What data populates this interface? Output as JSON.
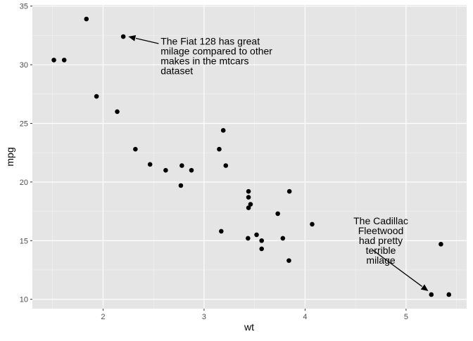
{
  "chart_data": {
    "type": "scatter",
    "xlabel": "wt",
    "ylabel": "mpg",
    "xlim": [
      1.3,
      5.6
    ],
    "ylim": [
      9.2,
      35.1
    ],
    "x_ticks": [
      2,
      3,
      4,
      5
    ],
    "y_ticks": [
      10,
      15,
      20,
      25,
      30,
      35
    ],
    "x_tick_labels": [
      "2",
      "3",
      "4",
      "5"
    ],
    "y_tick_labels": [
      "10",
      "15",
      "20",
      "25",
      "30",
      "35"
    ],
    "grid": true,
    "background": "#e5e5e5",
    "point_color": "#000000",
    "points": [
      {
        "x": 2.62,
        "y": 21.0
      },
      {
        "x": 2.875,
        "y": 21.0
      },
      {
        "x": 2.32,
        "y": 22.8
      },
      {
        "x": 3.215,
        "y": 21.4
      },
      {
        "x": 3.44,
        "y": 18.7
      },
      {
        "x": 3.46,
        "y": 18.1
      },
      {
        "x": 3.57,
        "y": 14.3
      },
      {
        "x": 3.19,
        "y": 24.4
      },
      {
        "x": 3.15,
        "y": 22.8
      },
      {
        "x": 3.44,
        "y": 19.2
      },
      {
        "x": 3.44,
        "y": 17.8
      },
      {
        "x": 4.07,
        "y": 16.4
      },
      {
        "x": 3.73,
        "y": 17.3
      },
      {
        "x": 3.78,
        "y": 15.2
      },
      {
        "x": 5.25,
        "y": 10.4
      },
      {
        "x": 5.424,
        "y": 10.4
      },
      {
        "x": 5.345,
        "y": 14.7
      },
      {
        "x": 2.2,
        "y": 32.4
      },
      {
        "x": 1.615,
        "y": 30.4
      },
      {
        "x": 1.835,
        "y": 33.9
      },
      {
        "x": 2.465,
        "y": 21.5
      },
      {
        "x": 3.52,
        "y": 15.5
      },
      {
        "x": 3.435,
        "y": 15.2
      },
      {
        "x": 3.84,
        "y": 13.3
      },
      {
        "x": 3.845,
        "y": 19.2
      },
      {
        "x": 1.935,
        "y": 27.3
      },
      {
        "x": 2.14,
        "y": 26.0
      },
      {
        "x": 1.513,
        "y": 30.4
      },
      {
        "x": 3.17,
        "y": 15.8
      },
      {
        "x": 2.77,
        "y": 19.7
      },
      {
        "x": 3.57,
        "y": 15.0
      },
      {
        "x": 2.78,
        "y": 21.4
      }
    ],
    "annotations": [
      {
        "lines": [
          "The Fiat 128 has great",
          "milage compared to other",
          "makes in the mtcars",
          "dataset"
        ],
        "anchor": "start",
        "text_x": 2.57,
        "text_y": 31.7,
        "arrow_from": [
          2.55,
          31.8
        ],
        "arrow_to": [
          2.25,
          32.4
        ]
      },
      {
        "lines": [
          "The Cadillac",
          "Fleetwood",
          "had pretty",
          "terrible",
          "milage"
        ],
        "anchor": "middle",
        "text_x": 4.75,
        "text_y": 16.4,
        "arrow_from": [
          4.67,
          14.2
        ],
        "arrow_to": [
          5.22,
          10.7
        ]
      }
    ]
  }
}
